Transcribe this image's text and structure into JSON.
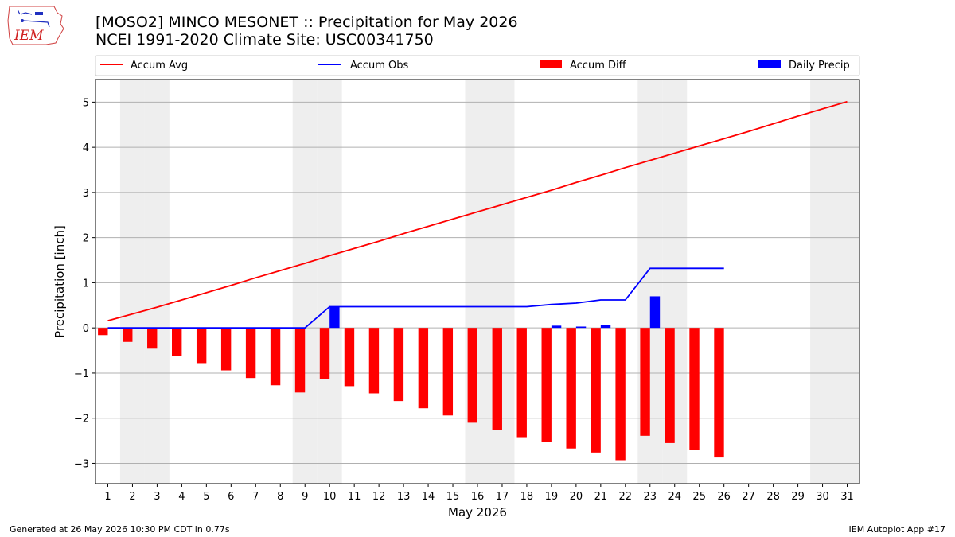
{
  "header": {
    "title": "[MOSO2] MINCO MESONET :: Precipitation for May 2026",
    "subtitle": "NCEI 1991-2020 Climate Site: USC00341750",
    "logo_text": "IEM"
  },
  "footer": {
    "generated": "Generated at 26 May 2026 10:30 PM CDT in 0.77s",
    "app": "IEM Autoplot App #17"
  },
  "colors": {
    "avg": "#ff0000",
    "obs": "#0000ff",
    "diff": "#ff0000",
    "daily": "#0000ff",
    "weekend_shade": "#eeeeee",
    "grid": "#b0b0b0"
  },
  "chart_data": {
    "type": "bar",
    "xlabel": "May 2026",
    "ylabel": "Precipitation [inch]",
    "xlim": [
      0.5,
      31.5
    ],
    "ylim": [
      -3.45,
      5.5
    ],
    "yticks": [
      -3,
      -2,
      -1,
      0,
      1,
      2,
      3,
      4,
      5
    ],
    "xticks": [
      1,
      2,
      3,
      4,
      5,
      6,
      7,
      8,
      9,
      10,
      11,
      12,
      13,
      14,
      15,
      16,
      17,
      18,
      19,
      20,
      21,
      22,
      23,
      24,
      25,
      26,
      27,
      28,
      29,
      30,
      31
    ],
    "grid": true,
    "legend_position": "top",
    "weekend_days": [
      2,
      3,
      9,
      10,
      16,
      17,
      23,
      24,
      30,
      31
    ],
    "legend": [
      "Accum Avg",
      "Accum Obs",
      "Accum Diff",
      "Daily Precip"
    ],
    "series": [
      {
        "name": "Accum Avg",
        "type": "line",
        "x": [
          1,
          2,
          3,
          4,
          5,
          6,
          7,
          8,
          9,
          10,
          11,
          12,
          13,
          14,
          15,
          16,
          17,
          18,
          19,
          20,
          21,
          22,
          23,
          24,
          25,
          26,
          27,
          28,
          29,
          30,
          31
        ],
        "values": [
          0.16,
          0.31,
          0.46,
          0.62,
          0.78,
          0.94,
          1.11,
          1.27,
          1.43,
          1.6,
          1.76,
          1.92,
          2.09,
          2.25,
          2.41,
          2.57,
          2.73,
          2.89,
          3.05,
          3.22,
          3.38,
          3.55,
          3.71,
          3.87,
          4.03,
          4.19,
          4.35,
          4.52,
          4.69,
          4.85,
          5.01
        ]
      },
      {
        "name": "Accum Obs",
        "type": "line",
        "x": [
          1,
          2,
          3,
          4,
          5,
          6,
          7,
          8,
          9,
          10,
          11,
          12,
          13,
          14,
          15,
          16,
          17,
          18,
          19,
          20,
          21,
          22,
          23,
          24,
          25,
          26
        ],
        "values": [
          0,
          0,
          0,
          0,
          0,
          0,
          0,
          0,
          0,
          0.47,
          0.47,
          0.47,
          0.47,
          0.47,
          0.47,
          0.47,
          0.47,
          0.47,
          0.52,
          0.55,
          0.62,
          0.62,
          1.32,
          1.32,
          1.32,
          1.32
        ]
      },
      {
        "name": "Accum Diff",
        "type": "bar",
        "x": [
          1,
          2,
          3,
          4,
          5,
          6,
          7,
          8,
          9,
          10,
          11,
          12,
          13,
          14,
          15,
          16,
          17,
          18,
          19,
          20,
          21,
          22,
          23,
          24,
          25,
          26
        ],
        "values": [
          -0.16,
          -0.31,
          -0.46,
          -0.62,
          -0.78,
          -0.94,
          -1.11,
          -1.27,
          -1.43,
          -1.13,
          -1.29,
          -1.45,
          -1.62,
          -1.78,
          -1.94,
          -2.1,
          -2.26,
          -2.42,
          -2.53,
          -2.67,
          -2.76,
          -2.93,
          -2.39,
          -2.55,
          -2.71,
          -2.87
        ]
      },
      {
        "name": "Daily Precip",
        "type": "bar",
        "x": [
          10,
          19,
          20,
          21,
          23
        ],
        "values": [
          0.47,
          0.05,
          0.03,
          0.07,
          0.7
        ]
      }
    ]
  }
}
